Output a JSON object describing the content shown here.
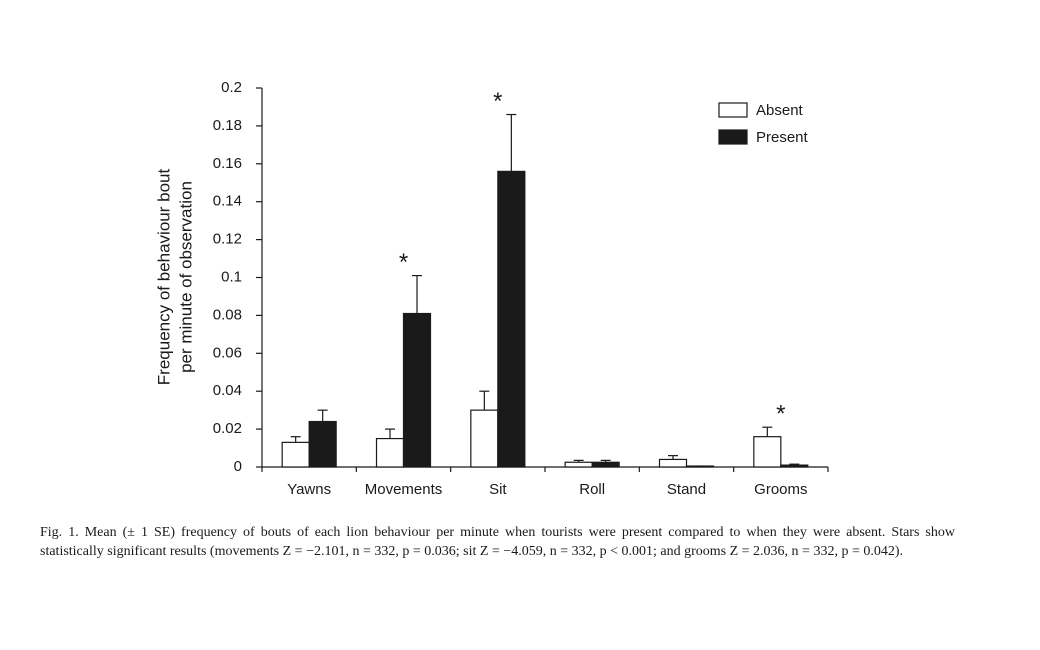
{
  "chart_data": {
    "type": "bar",
    "ylabel": [
      "Frequency of behaviour bout",
      "per minute of observation"
    ],
    "categories": [
      "Yawns",
      "Movements",
      "Sit",
      "Roll",
      "Stand",
      "Grooms"
    ],
    "series": [
      {
        "name": "Absent",
        "color": "#ffffff",
        "values": [
          0.013,
          0.015,
          0.03,
          0.0025,
          0.004,
          0.016
        ],
        "errors": [
          0.003,
          0.005,
          0.01,
          0.001,
          0.002,
          0.005
        ]
      },
      {
        "name": "Present",
        "color": "#1a1a1a",
        "values": [
          0.024,
          0.081,
          0.156,
          0.0025,
          0.0005,
          0.001
        ],
        "errors": [
          0.006,
          0.02,
          0.03,
          0.001,
          0,
          0.0005
        ]
      }
    ],
    "ylim": [
      0,
      0.2
    ],
    "yticks": [
      0,
      0.02,
      0.04,
      0.06,
      0.08,
      0.1,
      0.12,
      0.14,
      0.16,
      0.18,
      0.2
    ],
    "legend": "top-right",
    "annotations": [
      {
        "text": "*",
        "category": "Movements"
      },
      {
        "text": "*",
        "category": "Sit"
      },
      {
        "text": "*",
        "category": "Grooms"
      }
    ],
    "caption": "Fig. 1. Mean (± 1 SE) frequency of bouts of each lion behaviour per minute when tourists were present compared to when they were absent. Stars show statistically significant results (movements Z = −2.101, n = 332, p = 0.036; sit Z = −4.059, n = 332, p < 0.001; and grooms Z = 2.036, n = 332, p = 0.042)."
  }
}
